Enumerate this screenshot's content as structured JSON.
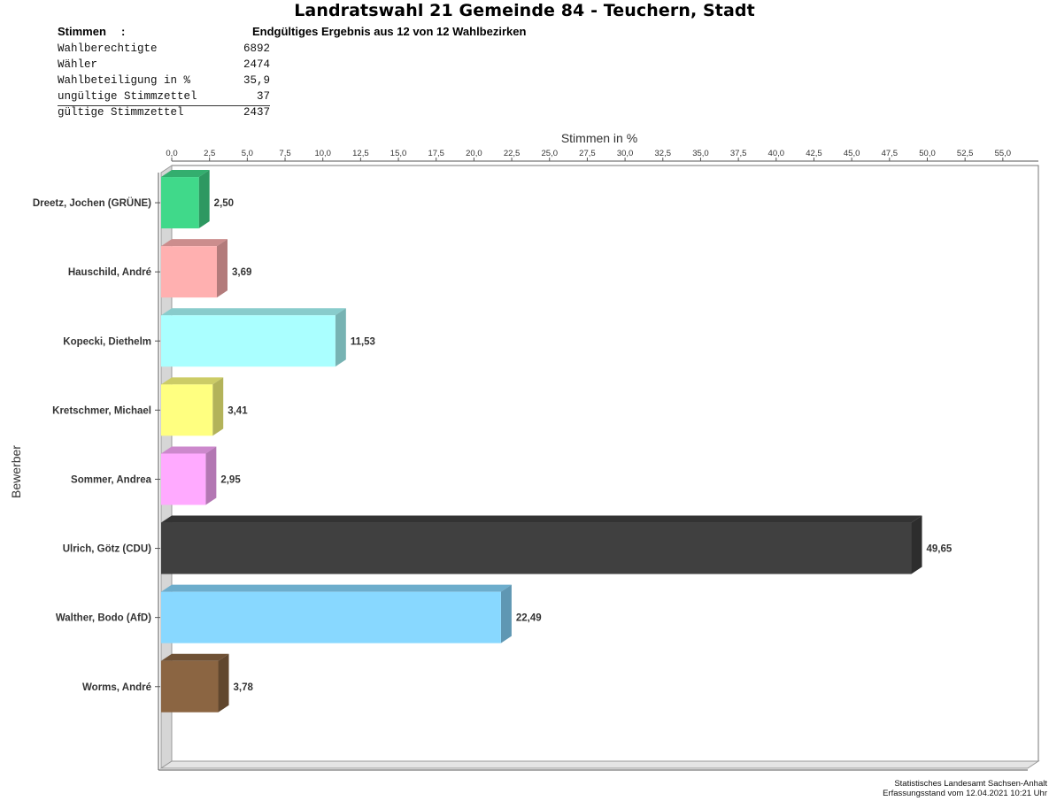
{
  "page": {
    "title": "Landratswahl 21 Gemeinde 84 - Teuchern, Stadt",
    "stimmen_label": "Stimmen",
    "colon": ":",
    "result_line": "Endgültiges Ergebnis aus 12 von 12 Wahlbezirken",
    "stats": [
      {
        "label": "Wahlberechtigte",
        "value": "6892"
      },
      {
        "label": "Wähler",
        "value": "2474"
      },
      {
        "label": "Wahlbeteiligung in %",
        "value": "35,9"
      },
      {
        "label": "ungültige Stimmzettel",
        "value": "37"
      },
      {
        "label": "gültige Stimmzettel",
        "value": "2437"
      }
    ],
    "footer_line1": "Statistisches Landesamt Sachsen-Anhalt",
    "footer_line2": "Erfassungsstand vom 12.04.2021 10:21 Uhr"
  },
  "chart_data": {
    "type": "bar",
    "orientation": "horizontal",
    "xlabel": "Stimmen in %",
    "ylabel": "Bewerber",
    "xlim": [
      0,
      57.5
    ],
    "x_ticks": [
      "0,0",
      "2,5",
      "5,0",
      "7,5",
      "10,0",
      "12,5",
      "15,0",
      "17,5",
      "20,0",
      "22,5",
      "25,0",
      "27,5",
      "30,0",
      "32,5",
      "35,0",
      "37,5",
      "40,0",
      "42,5",
      "45,0",
      "47,5",
      "50,0",
      "52,5",
      "55,0"
    ],
    "tick_axis_position": "top",
    "grid": false,
    "legend": false,
    "categories": [
      "Dreetz, Jochen (GRÜNE)",
      "Hauschild, André",
      "Kopecki, Diethelm",
      "Kretschmer, Michael",
      "Sommer, Andrea",
      "Ulrich, Götz (CDU)",
      "Walther, Bodo (AfD)",
      "Worms, André"
    ],
    "values": [
      2.5,
      3.69,
      11.53,
      3.41,
      2.95,
      49.65,
      22.49,
      3.78
    ],
    "value_labels": [
      "2,50",
      "3,69",
      "11,53",
      "3,41",
      "2,95",
      "49,65",
      "22,49",
      "3,78"
    ],
    "colors": [
      "#40d98a",
      "#ffb0b0",
      "#aaffff",
      "#ffff80",
      "#ffaaff",
      "#404040",
      "#88d8ff",
      "#8b6542"
    ]
  }
}
